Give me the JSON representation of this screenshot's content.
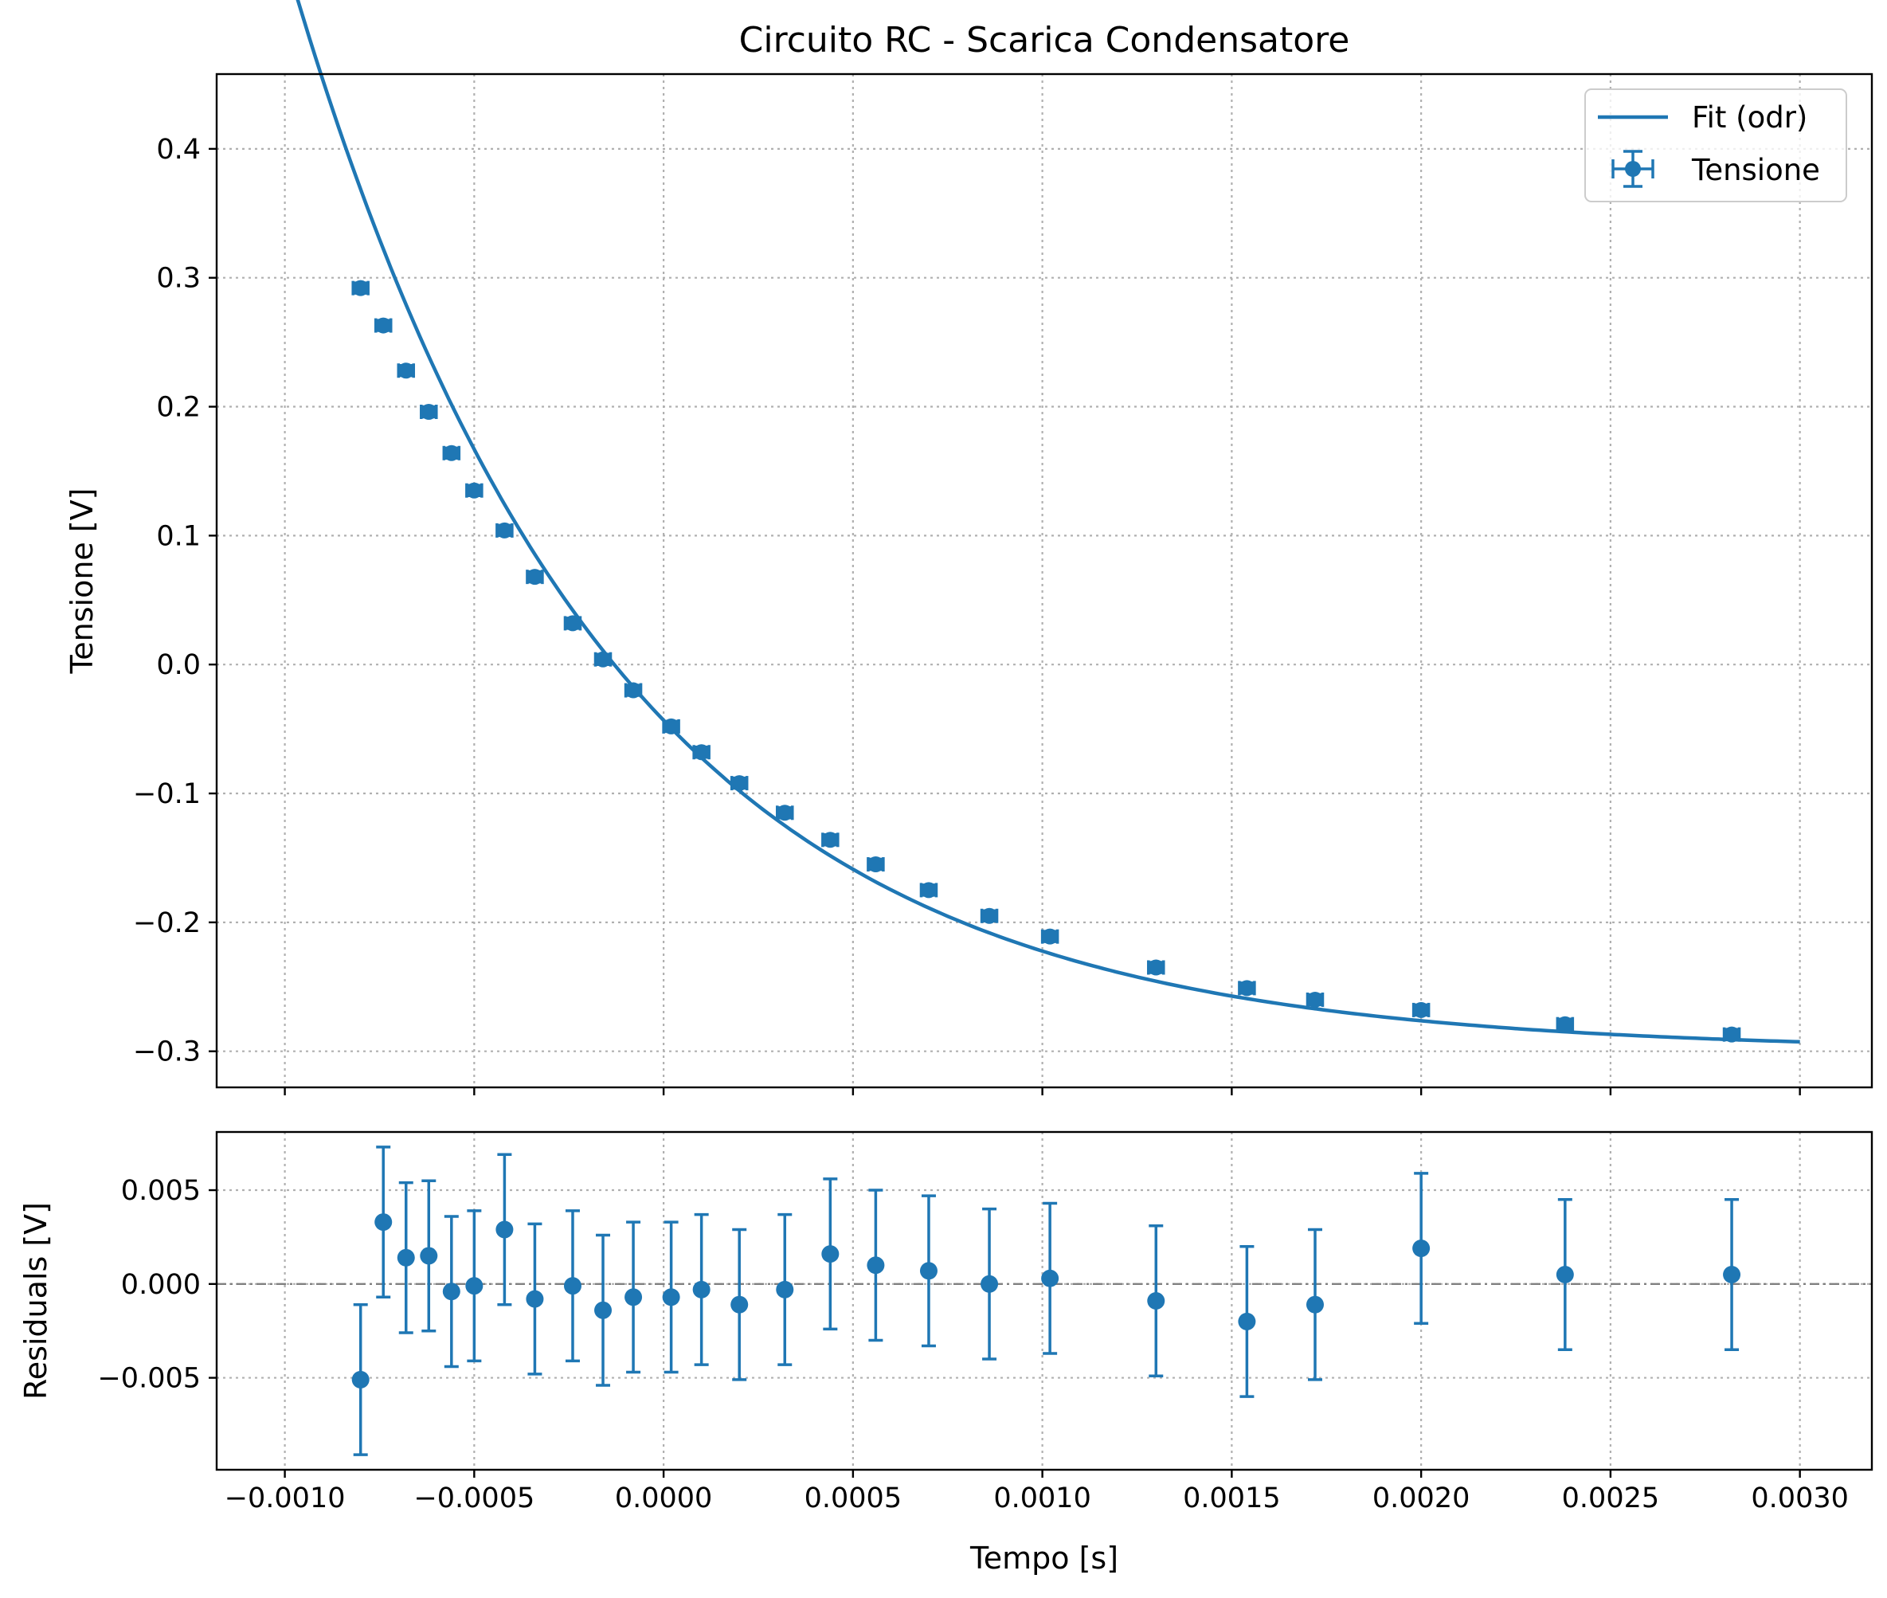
{
  "chart_data": [
    {
      "type": "scatter",
      "title": "Circuito RC - Scarica Condensatore",
      "xlabel": "",
      "ylabel": "Tensione [V]",
      "xlim": [
        -0.00118,
        0.00319
      ],
      "ylim": [
        -0.328,
        0.458
      ],
      "xticks": [
        -0.001,
        -0.0005,
        0.0,
        0.0005,
        0.001,
        0.0015,
        0.002,
        0.0025,
        0.003
      ],
      "xtick_labels_visible": false,
      "yticks": [
        -0.3,
        -0.2,
        -0.1,
        0.0,
        0.1,
        0.2,
        0.3,
        0.4
      ],
      "ytick_labels": [
        "−0.3",
        "−0.2",
        "−0.1",
        "0.0",
        "0.1",
        "0.2",
        "0.3",
        "0.4"
      ],
      "grid": true,
      "legend": "top-right",
      "fit_model": {
        "tau": 0.000835,
        "v_inf": -0.2997,
        "v_at_zero": -0.0433,
        "t_start": -0.00098,
        "t_end": 0.003
      },
      "series": [
        {
          "name": "Fit (odr)",
          "kind": "line"
        },
        {
          "name": "Tensione",
          "kind": "errorbar",
          "x": [
            -0.0008,
            -0.00074,
            -0.00068,
            -0.00062,
            -0.00056,
            -0.0005,
            -0.00042,
            -0.00034,
            -0.00024,
            -0.00016,
            -8e-05,
            2e-05,
            0.0001,
            0.0002,
            0.00032,
            0.00044,
            0.00056,
            0.0007,
            0.00086,
            0.00102,
            0.0013,
            0.00154,
            0.00172,
            0.002,
            0.00238,
            0.00282
          ],
          "y": [
            0.292,
            0.263,
            0.228,
            0.196,
            0.164,
            0.135,
            0.104,
            0.068,
            0.032,
            0.004,
            -0.02,
            -0.048,
            -0.068,
            -0.092,
            -0.115,
            -0.136,
            -0.155,
            -0.175,
            -0.195,
            -0.211,
            -0.235,
            -0.251,
            -0.26,
            -0.268,
            -0.279,
            -0.287
          ],
          "yerr": 0.004,
          "xerr": 2e-05
        }
      ]
    },
    {
      "type": "scatter",
      "title": "",
      "xlabel": "Tempo [s]",
      "ylabel": "Residuals [V]",
      "xlim": [
        -0.00118,
        0.00319
      ],
      "ylim": [
        -0.0099,
        0.0081
      ],
      "xticks": [
        -0.001,
        -0.0005,
        0.0,
        0.0005,
        0.001,
        0.0015,
        0.002,
        0.0025,
        0.003
      ],
      "xtick_labels": [
        "−0.0010",
        "−0.0005",
        "0.0000",
        "0.0005",
        "0.0010",
        "0.0015",
        "0.0020",
        "0.0025",
        "0.0030"
      ],
      "yticks": [
        -0.005,
        0.0,
        0.005
      ],
      "ytick_labels": [
        "−0.005",
        "0.000",
        "0.005"
      ],
      "grid": true,
      "reference_line": 0.0,
      "series": [
        {
          "kind": "errorbar",
          "x": [
            -0.0008,
            -0.00074,
            -0.00068,
            -0.00062,
            -0.00056,
            -0.0005,
            -0.00042,
            -0.00034,
            -0.00024,
            -0.00016,
            -8e-05,
            2e-05,
            0.0001,
            0.0002,
            0.00032,
            0.00044,
            0.00056,
            0.0007,
            0.00086,
            0.00102,
            0.0013,
            0.00154,
            0.00172,
            0.002,
            0.00238,
            0.00282
          ],
          "y": [
            -0.0051,
            0.0033,
            0.0014,
            0.0015,
            -0.0004,
            -0.0001,
            0.0029,
            -0.0008,
            -0.0001,
            -0.0014,
            -0.0007,
            -0.0007,
            -0.0003,
            -0.0011,
            -0.0003,
            0.0016,
            0.001,
            0.0007,
            0.0,
            0.0003,
            -0.0009,
            -0.002,
            -0.0011,
            0.0019,
            0.0005,
            0.0005
          ],
          "yerr": 0.004
        }
      ]
    }
  ],
  "colors": {
    "series": "#1f77b4",
    "reference_line": "#808080",
    "grid": "#b0b0b0"
  }
}
